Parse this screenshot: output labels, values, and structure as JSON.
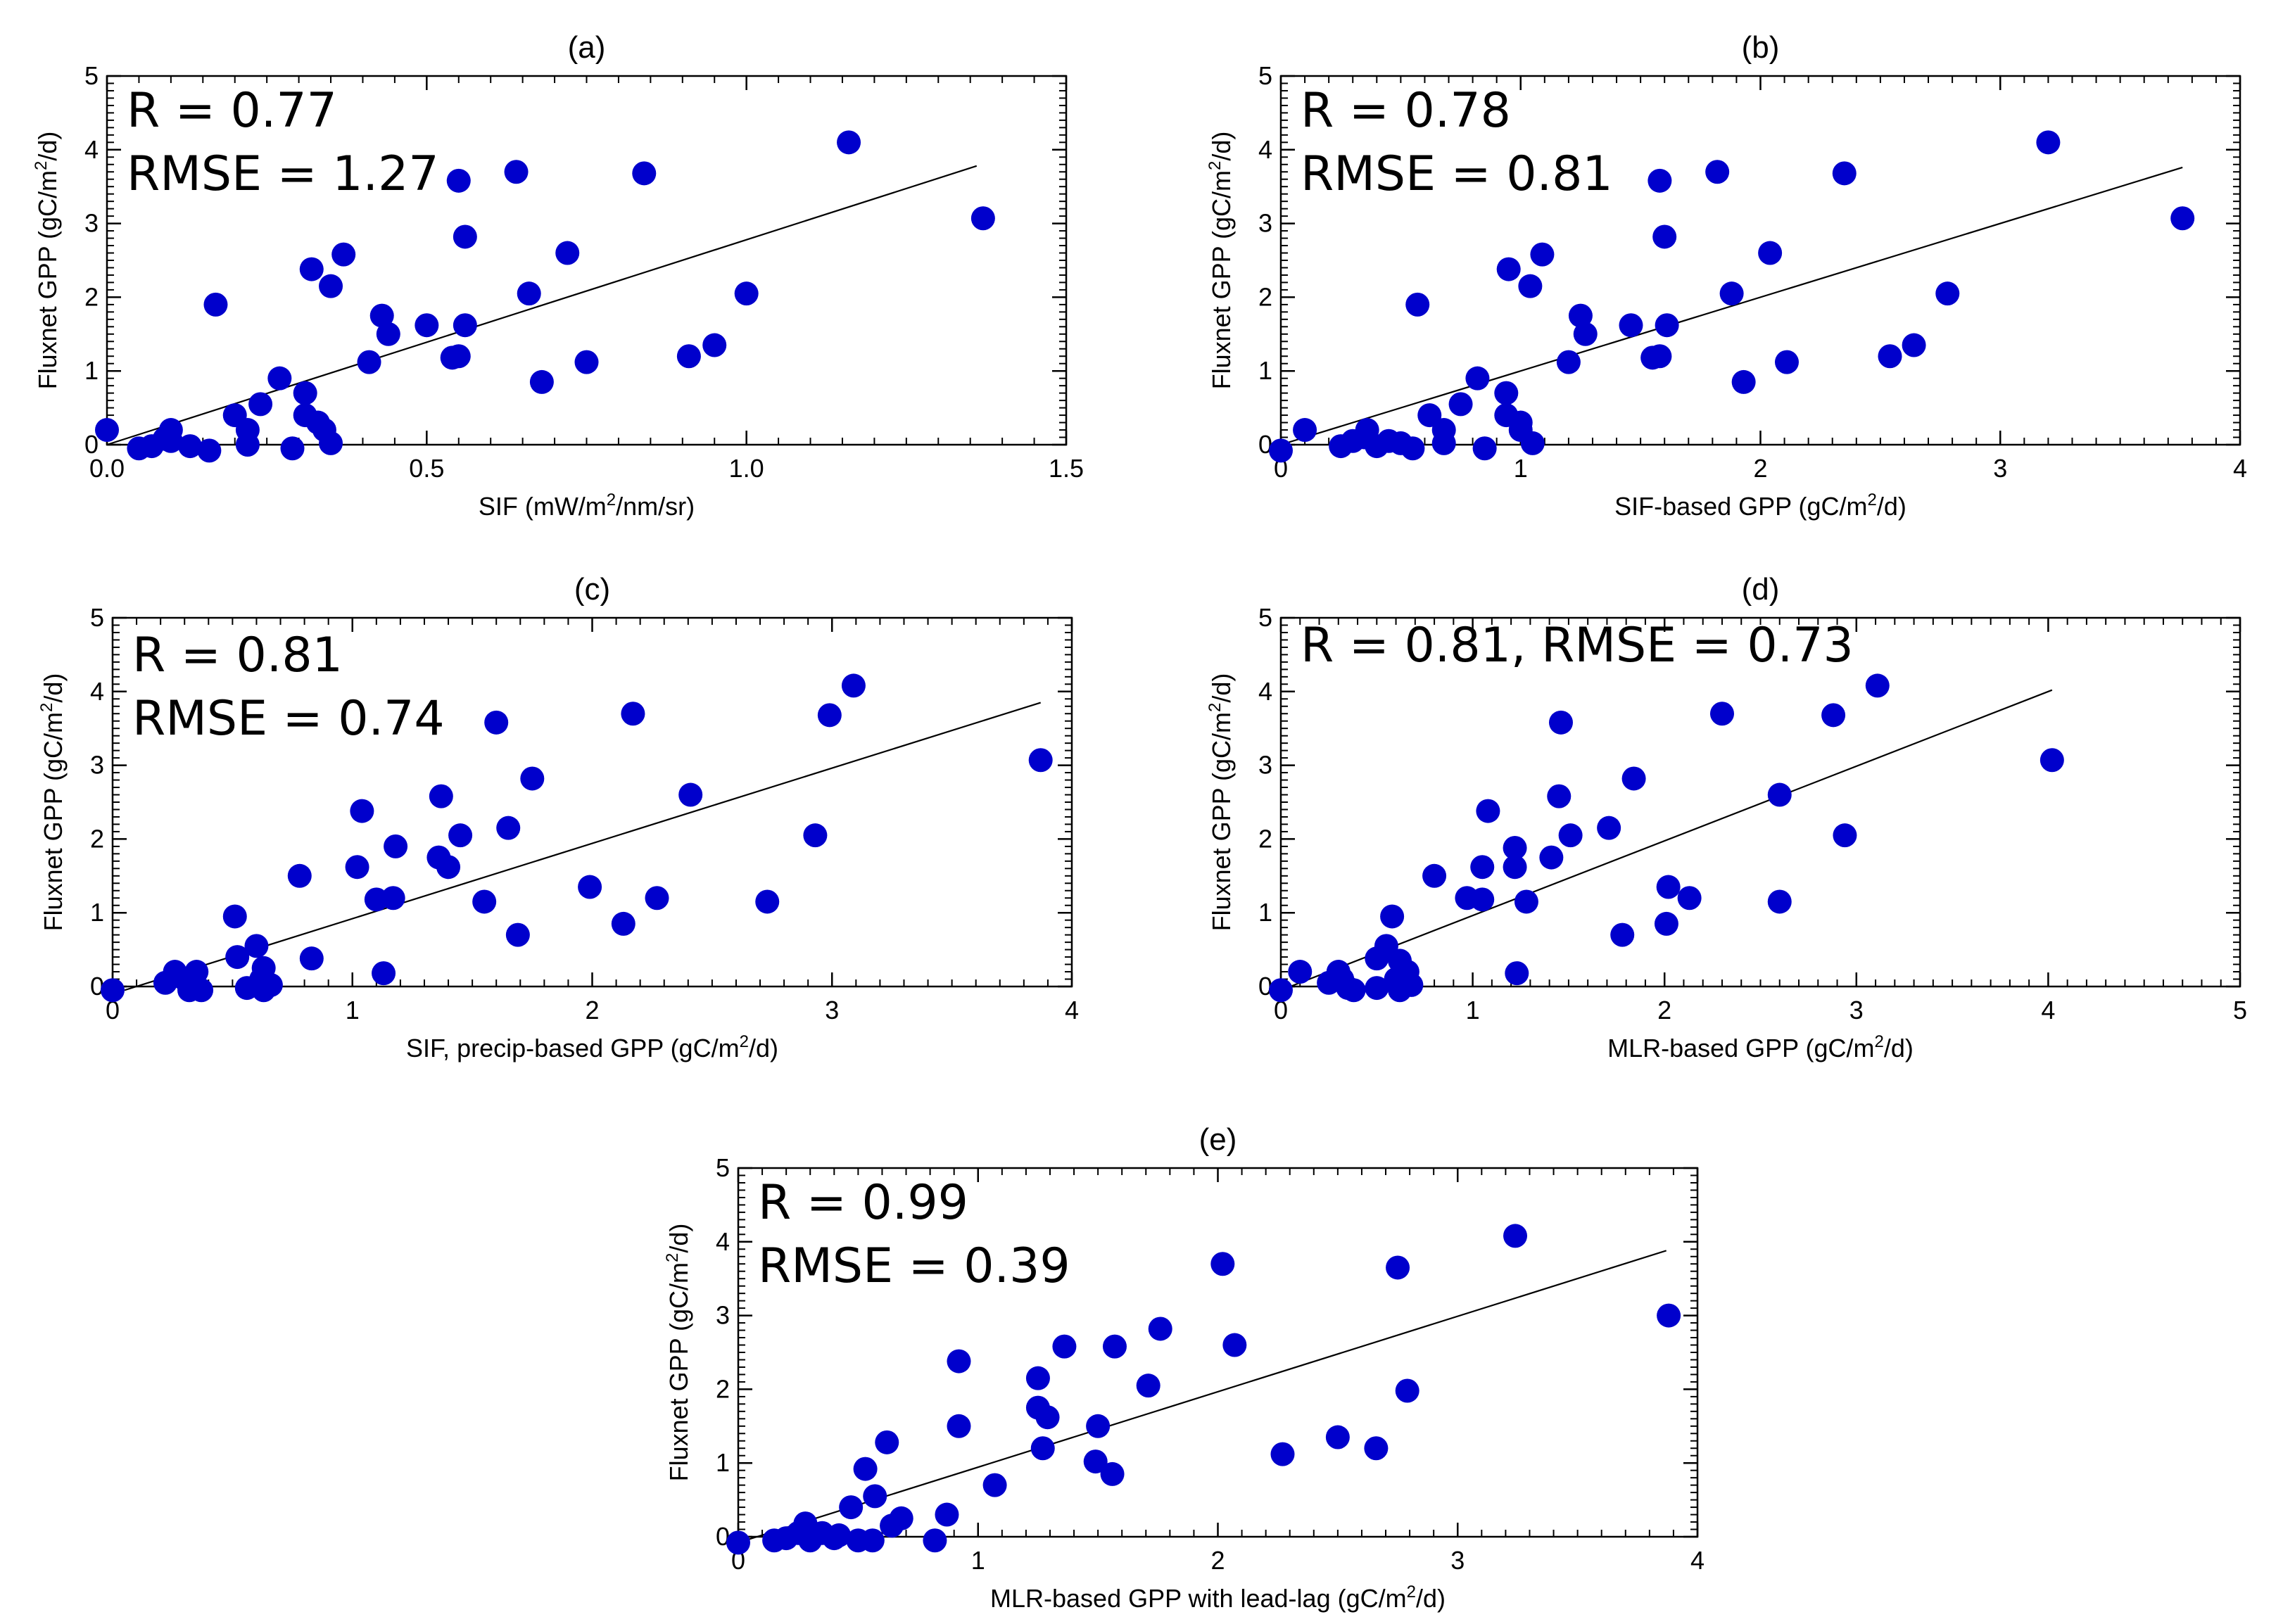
{
  "colors": {
    "points": "#0000cc",
    "line": "#000000",
    "frame": "#000000"
  },
  "chart_data": [
    {
      "type": "scatter",
      "panel": "(a)",
      "xlabel_pre": "SIF (mW/m",
      "xlabel_sup": "2",
      "xlabel_post": "/nm/sr)",
      "ylabel_pre": "Fluxnet GPP (gC/m",
      "ylabel_sup": "2",
      "ylabel_post": "/d)",
      "xlim": [
        0,
        1.5
      ],
      "ylim": [
        0,
        5
      ],
      "xticks": [
        0,
        0.5,
        1.0,
        1.5
      ],
      "xtick_labels": [
        "0.0",
        "0.5",
        "1.0",
        "1.5"
      ],
      "yticks": [
        0,
        1,
        2,
        3,
        4,
        5
      ],
      "ytick_labels": [
        "0",
        "1",
        "2",
        "3",
        "4",
        "5"
      ],
      "stats": [
        "R = 0.77",
        "RMSE = 1.27"
      ],
      "fit": {
        "x": [
          0,
          1.36
        ],
        "y": [
          0.0,
          3.78
        ]
      },
      "points": [
        [
          0,
          0.2
        ],
        [
          0.05,
          -0.05
        ],
        [
          0.07,
          -0.02
        ],
        [
          0.09,
          0.08
        ],
        [
          0.1,
          0.2
        ],
        [
          0.1,
          0.05
        ],
        [
          0.13,
          -0.02
        ],
        [
          0.16,
          -0.08
        ],
        [
          0.17,
          1.9
        ],
        [
          0.2,
          0.4
        ],
        [
          0.22,
          0.2
        ],
        [
          0.22,
          0.0
        ],
        [
          0.24,
          0.55
        ],
        [
          0.27,
          0.9
        ],
        [
          0.29,
          -0.05
        ],
        [
          0.31,
          0.7
        ],
        [
          0.31,
          0.4
        ],
        [
          0.32,
          2.38
        ],
        [
          0.33,
          0.3
        ],
        [
          0.34,
          0.2
        ],
        [
          0.35,
          0.02
        ],
        [
          0.35,
          2.15
        ],
        [
          0.37,
          2.58
        ],
        [
          0.41,
          1.12
        ],
        [
          0.43,
          1.75
        ],
        [
          0.44,
          1.5
        ],
        [
          0.5,
          1.62
        ],
        [
          0.54,
          1.18
        ],
        [
          0.55,
          1.2
        ],
        [
          0.55,
          3.58
        ],
        [
          0.56,
          2.82
        ],
        [
          0.56,
          1.62
        ],
        [
          0.64,
          3.7
        ],
        [
          0.66,
          2.05
        ],
        [
          0.68,
          0.85
        ],
        [
          0.72,
          2.6
        ],
        [
          0.75,
          1.12
        ],
        [
          0.84,
          3.68
        ],
        [
          0.91,
          1.2
        ],
        [
          0.95,
          1.35
        ],
        [
          1.0,
          2.05
        ],
        [
          1.16,
          4.1
        ],
        [
          1.37,
          3.07
        ]
      ]
    },
    {
      "type": "scatter",
      "panel": "(b)",
      "xlabel_pre": "SIF-based GPP (gC/m",
      "xlabel_sup": "2",
      "xlabel_post": "/d)",
      "ylabel_pre": "Fluxnet GPP (gC/m",
      "ylabel_sup": "2",
      "ylabel_post": "/d)",
      "xlim": [
        0,
        4
      ],
      "ylim": [
        0,
        5
      ],
      "xticks": [
        0,
        1,
        2,
        3,
        4
      ],
      "xtick_labels": [
        "0",
        "1",
        "2",
        "3",
        "4"
      ],
      "yticks": [
        0,
        1,
        2,
        3,
        4,
        5
      ],
      "ytick_labels": [
        "0",
        "1",
        "2",
        "3",
        "4",
        "5"
      ],
      "stats": [
        "R = 0.78",
        "RMSE = 0.81"
      ],
      "fit": {
        "x": [
          0,
          3.76
        ],
        "y": [
          0.0,
          3.76
        ]
      },
      "points": [
        [
          0,
          -0.08
        ],
        [
          0.1,
          0.2
        ],
        [
          0.25,
          -0.02
        ],
        [
          0.3,
          0.05
        ],
        [
          0.35,
          0.1
        ],
        [
          0.36,
          0.2
        ],
        [
          0.4,
          -0.02
        ],
        [
          0.45,
          0.05
        ],
        [
          0.5,
          0.02
        ],
        [
          0.55,
          -0.05
        ],
        [
          0.57,
          1.9
        ],
        [
          0.62,
          0.4
        ],
        [
          0.68,
          0.2
        ],
        [
          0.68,
          0.02
        ],
        [
          0.75,
          0.55
        ],
        [
          0.82,
          0.9
        ],
        [
          0.85,
          -0.05
        ],
        [
          0.94,
          0.7
        ],
        [
          0.94,
          0.4
        ],
        [
          0.95,
          2.38
        ],
        [
          1.0,
          0.3
        ],
        [
          1.0,
          0.2
        ],
        [
          1.05,
          0.02
        ],
        [
          1.04,
          2.15
        ],
        [
          1.09,
          2.58
        ],
        [
          1.2,
          1.12
        ],
        [
          1.25,
          1.75
        ],
        [
          1.27,
          1.5
        ],
        [
          1.46,
          1.62
        ],
        [
          1.55,
          1.18
        ],
        [
          1.58,
          1.2
        ],
        [
          1.58,
          3.58
        ],
        [
          1.6,
          2.82
        ],
        [
          1.61,
          1.62
        ],
        [
          1.82,
          3.7
        ],
        [
          1.88,
          2.05
        ],
        [
          1.93,
          0.85
        ],
        [
          2.04,
          2.6
        ],
        [
          2.11,
          1.12
        ],
        [
          2.35,
          3.68
        ],
        [
          2.54,
          1.2
        ],
        [
          2.64,
          1.35
        ],
        [
          2.78,
          2.05
        ],
        [
          3.2,
          4.1
        ],
        [
          3.76,
          3.07
        ]
      ]
    },
    {
      "type": "scatter",
      "panel": "(c)",
      "xlabel_pre": "SIF, precip-based GPP (gC/m",
      "xlabel_sup": "2",
      "xlabel_post": "/d)",
      "ylabel_pre": "Fluxnet GPP (gC/m",
      "ylabel_sup": "2",
      "ylabel_post": "/d)",
      "xlim": [
        0,
        4
      ],
      "ylim": [
        0,
        5
      ],
      "xticks": [
        0,
        1,
        2,
        3,
        4
      ],
      "xtick_labels": [
        "0",
        "1",
        "2",
        "3",
        "4"
      ],
      "yticks": [
        0,
        1,
        2,
        3,
        4,
        5
      ],
      "ytick_labels": [
        "0",
        "1",
        "2",
        "3",
        "4",
        "5"
      ],
      "stats": [
        "R = 0.81",
        "RMSE = 0.74"
      ],
      "fit": {
        "x": [
          0.05,
          3.87
        ],
        "y": [
          -0.05,
          3.85
        ]
      },
      "points": [
        [
          0,
          -0.05
        ],
        [
          0.22,
          0.05
        ],
        [
          0.26,
          0.2
        ],
        [
          0.3,
          0.1
        ],
        [
          0.32,
          -0.05
        ],
        [
          0.35,
          0.2
        ],
        [
          0.37,
          -0.05
        ],
        [
          0.51,
          0.95
        ],
        [
          0.52,
          0.4
        ],
        [
          0.56,
          -0.02
        ],
        [
          0.6,
          0.55
        ],
        [
          0.62,
          0.1
        ],
        [
          0.63,
          -0.05
        ],
        [
          0.63,
          0.25
        ],
        [
          0.66,
          0.02
        ],
        [
          0.78,
          1.5
        ],
        [
          0.83,
          0.38
        ],
        [
          1.02,
          1.62
        ],
        [
          1.04,
          2.38
        ],
        [
          1.1,
          1.18
        ],
        [
          1.13,
          0.18
        ],
        [
          1.17,
          1.2
        ],
        [
          1.18,
          1.9
        ],
        [
          1.36,
          1.75
        ],
        [
          1.37,
          2.58
        ],
        [
          1.4,
          1.62
        ],
        [
          1.45,
          2.05
        ],
        [
          1.55,
          1.15
        ],
        [
          1.6,
          3.58
        ],
        [
          1.65,
          2.15
        ],
        [
          1.69,
          0.7
        ],
        [
          1.75,
          2.82
        ],
        [
          1.99,
          1.35
        ],
        [
          2.13,
          0.85
        ],
        [
          2.17,
          3.7
        ],
        [
          2.27,
          1.2
        ],
        [
          2.41,
          2.6
        ],
        [
          2.73,
          1.15
        ],
        [
          2.93,
          2.05
        ],
        [
          2.99,
          3.68
        ],
        [
          3.09,
          4.08
        ],
        [
          3.87,
          3.07
        ]
      ]
    },
    {
      "type": "scatter",
      "panel": "(d)",
      "xlabel_pre": "MLR-based GPP (gC/m",
      "xlabel_sup": "2",
      "xlabel_post": "/d)",
      "ylabel_pre": "Fluxnet GPP (gC/m",
      "ylabel_sup": "2",
      "ylabel_post": "/d)",
      "xlim": [
        0,
        5
      ],
      "ylim": [
        0,
        5
      ],
      "xticks": [
        0,
        1,
        2,
        3,
        4,
        5
      ],
      "xtick_labels": [
        "0",
        "1",
        "2",
        "3",
        "4",
        "5"
      ],
      "yticks": [
        0,
        1,
        2,
        3,
        4,
        5
      ],
      "ytick_labels": [
        "0",
        "1",
        "2",
        "3",
        "4",
        "5"
      ],
      "stats": [
        "R = 0.81, RMSE = 0.73"
      ],
      "fit": {
        "x": [
          0,
          4.02
        ],
        "y": [
          -0.05,
          4.02
        ]
      },
      "points": [
        [
          0,
          -0.05
        ],
        [
          0.1,
          0.2
        ],
        [
          0.25,
          0.05
        ],
        [
          0.3,
          0.2
        ],
        [
          0.32,
          0.1
        ],
        [
          0.35,
          -0.02
        ],
        [
          0.38,
          -0.05
        ],
        [
          0.5,
          -0.02
        ],
        [
          0.5,
          0.38
        ],
        [
          0.55,
          0.55
        ],
        [
          0.58,
          0.95
        ],
        [
          0.6,
          0.1
        ],
        [
          0.62,
          -0.05
        ],
        [
          0.62,
          0.35
        ],
        [
          0.66,
          0.2
        ],
        [
          0.68,
          0.02
        ],
        [
          0.8,
          1.5
        ],
        [
          0.97,
          1.2
        ],
        [
          1.05,
          1.18
        ],
        [
          1.05,
          1.62
        ],
        [
          1.08,
          2.38
        ],
        [
          1.22,
          1.62
        ],
        [
          1.22,
          1.88
        ],
        [
          1.23,
          0.18
        ],
        [
          1.28,
          1.15
        ],
        [
          1.41,
          1.75
        ],
        [
          1.45,
          2.58
        ],
        [
          1.46,
          3.58
        ],
        [
          1.51,
          2.05
        ],
        [
          1.71,
          2.15
        ],
        [
          1.78,
          0.7
        ],
        [
          1.84,
          2.82
        ],
        [
          2.01,
          0.85
        ],
        [
          2.02,
          1.35
        ],
        [
          2.13,
          1.2
        ],
        [
          2.3,
          3.7
        ],
        [
          2.6,
          2.6
        ],
        [
          2.6,
          1.15
        ],
        [
          2.88,
          3.68
        ],
        [
          2.94,
          2.05
        ],
        [
          3.11,
          4.08
        ],
        [
          4.02,
          3.07
        ]
      ]
    },
    {
      "type": "scatter",
      "panel": "(e)",
      "xlabel_pre": "MLR-based GPP with lead-lag (gC/m",
      "xlabel_sup": "2",
      "xlabel_post": "/d)",
      "ylabel_pre": "Fluxnet GPP (gC/m",
      "ylabel_sup": "2",
      "ylabel_post": "/d)",
      "xlim": [
        0,
        4
      ],
      "ylim": [
        0,
        5
      ],
      "xticks": [
        0,
        1,
        2,
        3,
        4
      ],
      "xtick_labels": [
        "0",
        "1",
        "2",
        "3",
        "4"
      ],
      "yticks": [
        0,
        1,
        2,
        3,
        4,
        5
      ],
      "ytick_labels": [
        "0",
        "1",
        "2",
        "3",
        "4",
        "5"
      ],
      "stats": [
        "R = 0.99",
        "RMSE = 0.39"
      ],
      "fit": {
        "x": [
          0,
          3.87
        ],
        "y": [
          -0.08,
          3.88
        ]
      },
      "points": [
        [
          0,
          -0.08
        ],
        [
          0.15,
          -0.05
        ],
        [
          0.2,
          -0.02
        ],
        [
          0.25,
          0.05
        ],
        [
          0.28,
          0.18
        ],
        [
          0.3,
          -0.05
        ],
        [
          0.35,
          0.05
        ],
        [
          0.4,
          -0.02
        ],
        [
          0.42,
          0.02
        ],
        [
          0.47,
          0.4
        ],
        [
          0.5,
          -0.05
        ],
        [
          0.53,
          0.92
        ],
        [
          0.56,
          -0.05
        ],
        [
          0.57,
          0.55
        ],
        [
          0.62,
          1.28
        ],
        [
          0.64,
          0.15
        ],
        [
          0.68,
          0.25
        ],
        [
          0.82,
          -0.05
        ],
        [
          0.87,
          0.3
        ],
        [
          0.92,
          2.38
        ],
        [
          0.92,
          1.5
        ],
        [
          1.07,
          0.7
        ],
        [
          1.25,
          1.75
        ],
        [
          1.25,
          2.15
        ],
        [
          1.27,
          1.2
        ],
        [
          1.29,
          1.62
        ],
        [
          1.36,
          2.58
        ],
        [
          1.49,
          1.02
        ],
        [
          1.5,
          1.5
        ],
        [
          1.56,
          0.85
        ],
        [
          1.57,
          2.58
        ],
        [
          1.71,
          2.05
        ],
        [
          1.76,
          2.82
        ],
        [
          2.02,
          3.7
        ],
        [
          2.07,
          2.6
        ],
        [
          2.27,
          1.12
        ],
        [
          2.5,
          1.35
        ],
        [
          2.66,
          1.2
        ],
        [
          2.75,
          3.65
        ],
        [
          2.79,
          1.98
        ],
        [
          3.24,
          4.08
        ],
        [
          3.88,
          3.0
        ]
      ]
    }
  ]
}
